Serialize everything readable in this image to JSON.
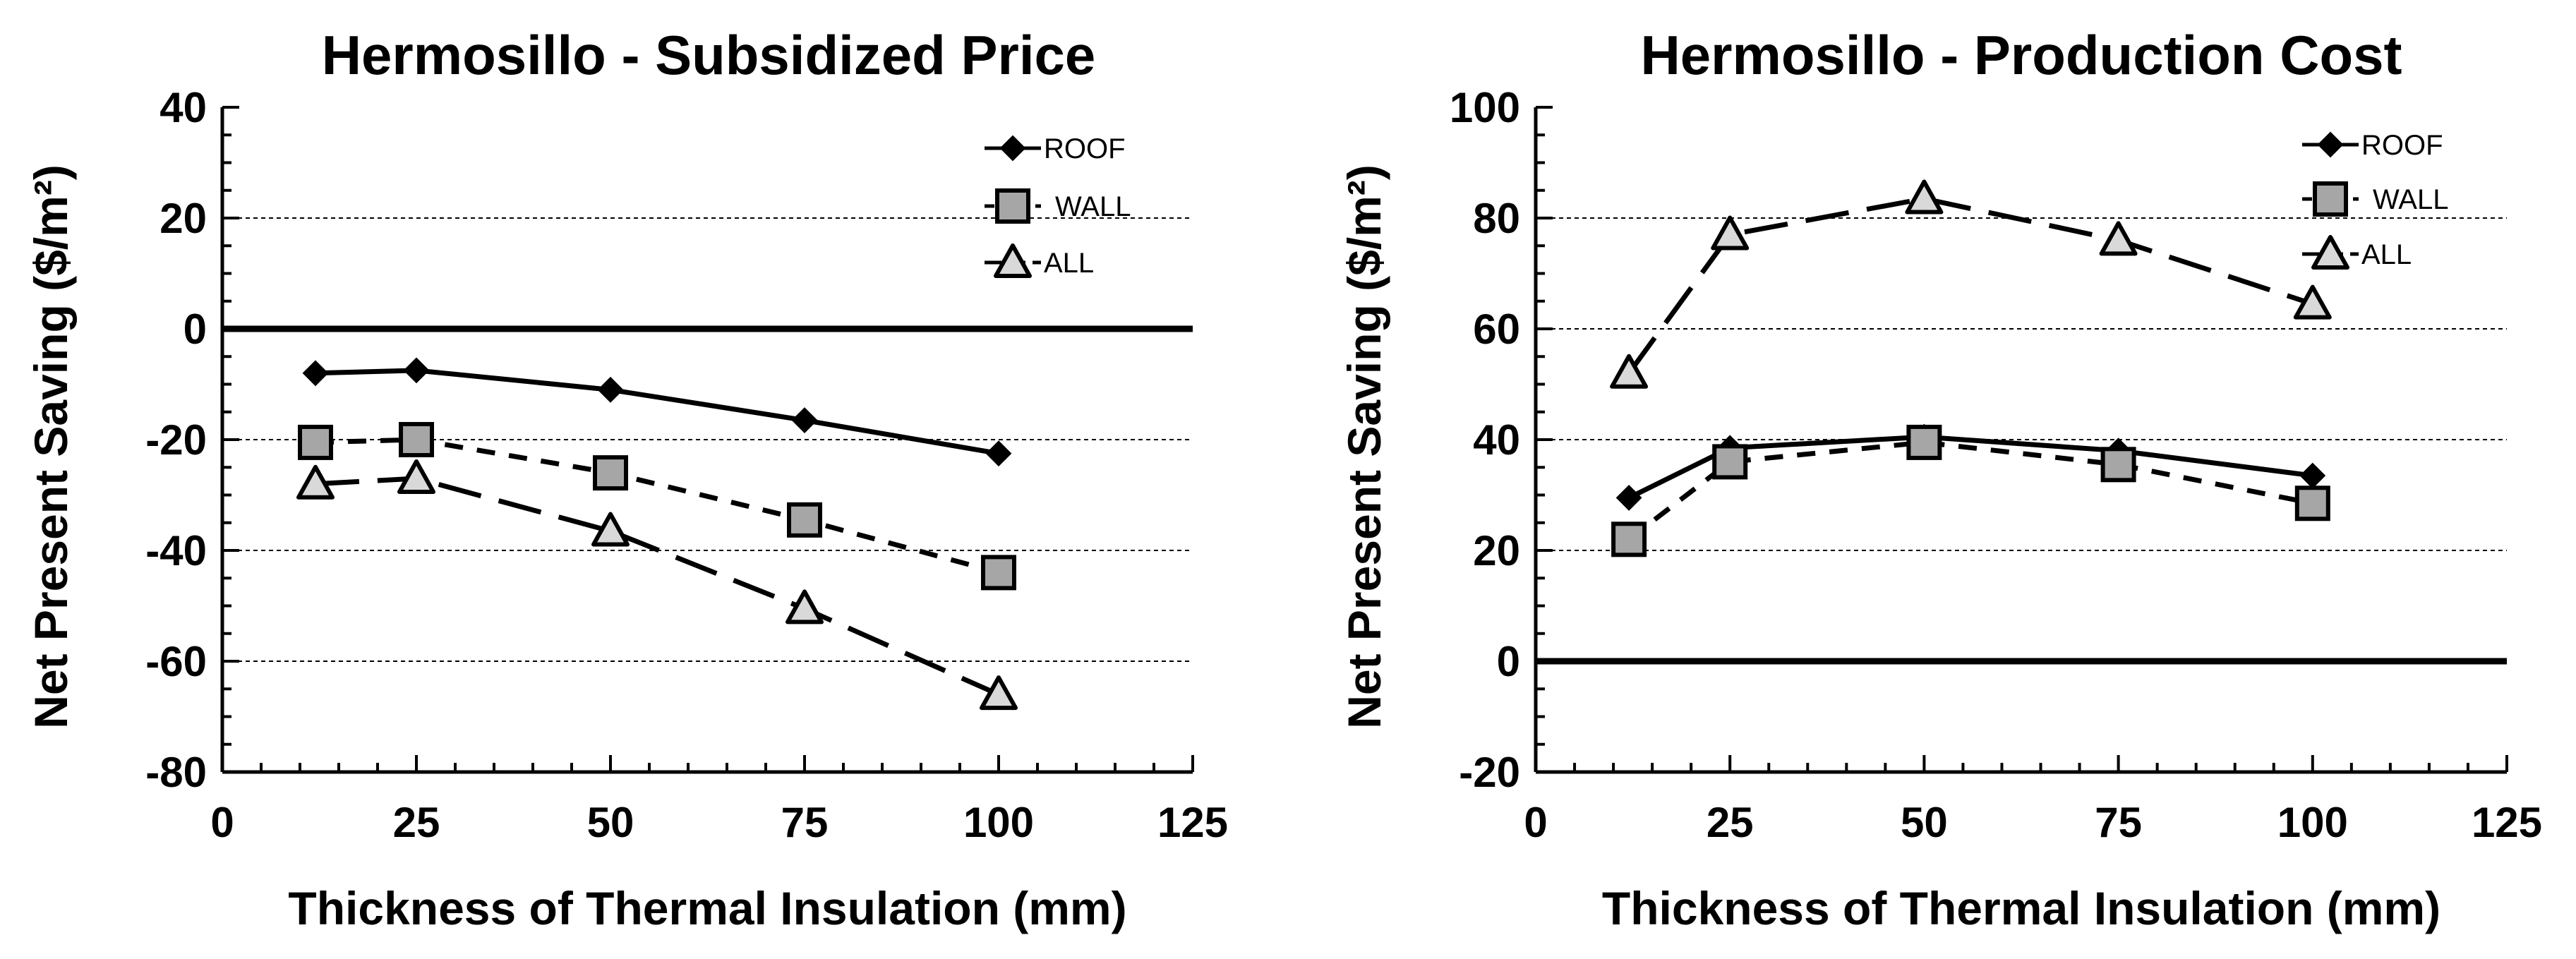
{
  "chart_data": [
    {
      "type": "line",
      "title": "Hermosillo - Subsidized Price",
      "xlabel": "Thickness of Thermal Insulation  (mm)",
      "ylabel": "Net Present Saving  ($/m²)",
      "xlim": [
        0,
        125
      ],
      "ylim": [
        -80,
        40
      ],
      "xticks": [
        0,
        25,
        50,
        75,
        100,
        125
      ],
      "yticks": [
        -80,
        -60,
        -40,
        -20,
        0,
        20,
        40
      ],
      "grid": "dashed horizontal",
      "legend_position": "top-right",
      "series": [
        {
          "name": "ROOF",
          "marker": "diamond",
          "dash": "solid",
          "x": [
            12,
            25,
            50,
            75,
            100
          ],
          "values": [
            -8,
            -7.5,
            -11,
            -16.5,
            -22.5
          ]
        },
        {
          "name": "WALL",
          "marker": "square",
          "dash": "short",
          "x": [
            12,
            25,
            50,
            75,
            100
          ],
          "values": [
            -20.5,
            -20,
            -26,
            -34.5,
            -44
          ]
        },
        {
          "name": "ALL",
          "marker": "triangle",
          "dash": "long",
          "x": [
            12,
            25,
            50,
            75,
            100
          ],
          "values": [
            -28,
            -27,
            -36.5,
            -50.5,
            -66
          ]
        }
      ]
    },
    {
      "type": "line",
      "title": "Hermosillo - Production Cost",
      "xlabel": "Thickness of Thermal Insulation  (mm)",
      "ylabel": "Net Present Saving  ($/m²)",
      "xlim": [
        0,
        125
      ],
      "ylim": [
        -20,
        100
      ],
      "xticks": [
        0,
        25,
        50,
        75,
        100,
        125
      ],
      "yticks": [
        -20,
        0,
        20,
        40,
        60,
        80,
        100
      ],
      "grid": "dashed horizontal",
      "legend_position": "top-right",
      "series": [
        {
          "name": "ROOF",
          "marker": "diamond",
          "dash": "solid",
          "x": [
            12,
            25,
            50,
            75,
            100
          ],
          "values": [
            29.5,
            38.5,
            40.5,
            38,
            33.5
          ]
        },
        {
          "name": "WALL",
          "marker": "square",
          "dash": "short",
          "x": [
            12,
            25,
            50,
            75,
            100
          ],
          "values": [
            22,
            36,
            39.5,
            35.5,
            28.5
          ]
        },
        {
          "name": "ALL",
          "marker": "triangle",
          "dash": "long",
          "x": [
            12,
            25,
            50,
            75,
            100
          ],
          "values": [
            52,
            77,
            83.5,
            76,
            64.5
          ]
        }
      ]
    }
  ]
}
